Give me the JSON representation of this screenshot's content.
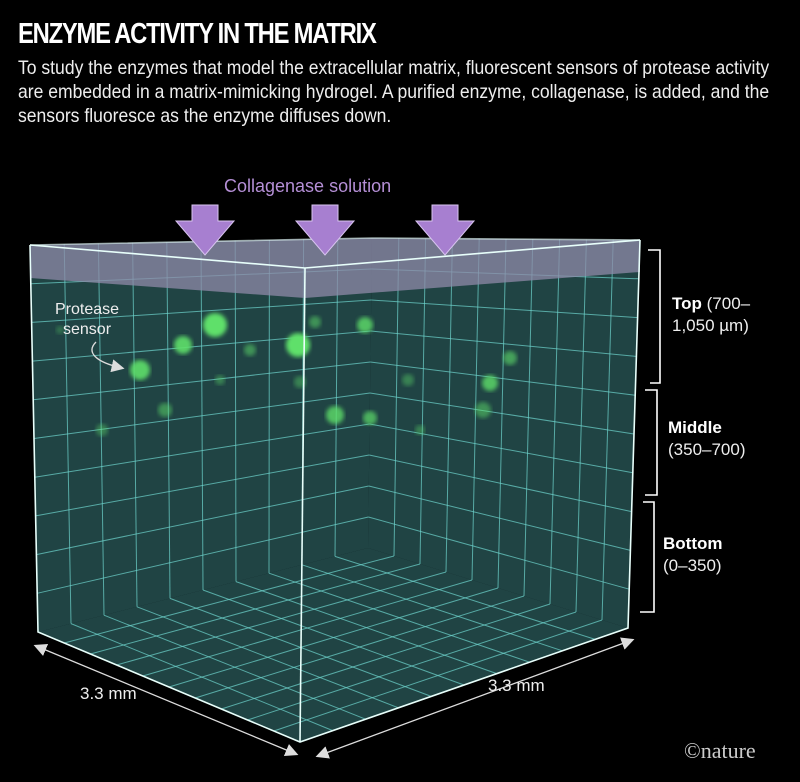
{
  "title": "ENZYME ACTIVITY IN THE MATRIX",
  "intro": "To study the enzymes that model the extracellular matrix, fluorescent sensors of protease activity are embedded in a matrix-mimicking hydrogel. A purified enzyme, collagenase, is added, and the sensors fluoresce as the enzyme diffuses down.",
  "labels": {
    "collagenase": "Collagenase solution",
    "protease_line1": "Protease",
    "protease_line2": "sensor",
    "dim_left": "3.3 mm",
    "dim_right": "3.3 mm"
  },
  "layers": [
    {
      "name": "Top",
      "range_line1": "(700–",
      "range_line2": "1,050 µm)"
    },
    {
      "name": "Middle",
      "range_line1": "",
      "range_line2": "(350–700)"
    },
    {
      "name": "Bottom",
      "range_line1": "",
      "range_line2": "(0–350)"
    }
  ],
  "credit": "©nature",
  "colors": {
    "background": "#000000",
    "gel": "#1f4244",
    "grid": "#6fd6cf",
    "arrow": "#a77fd0",
    "sensor": "#5fe06a"
  }
}
